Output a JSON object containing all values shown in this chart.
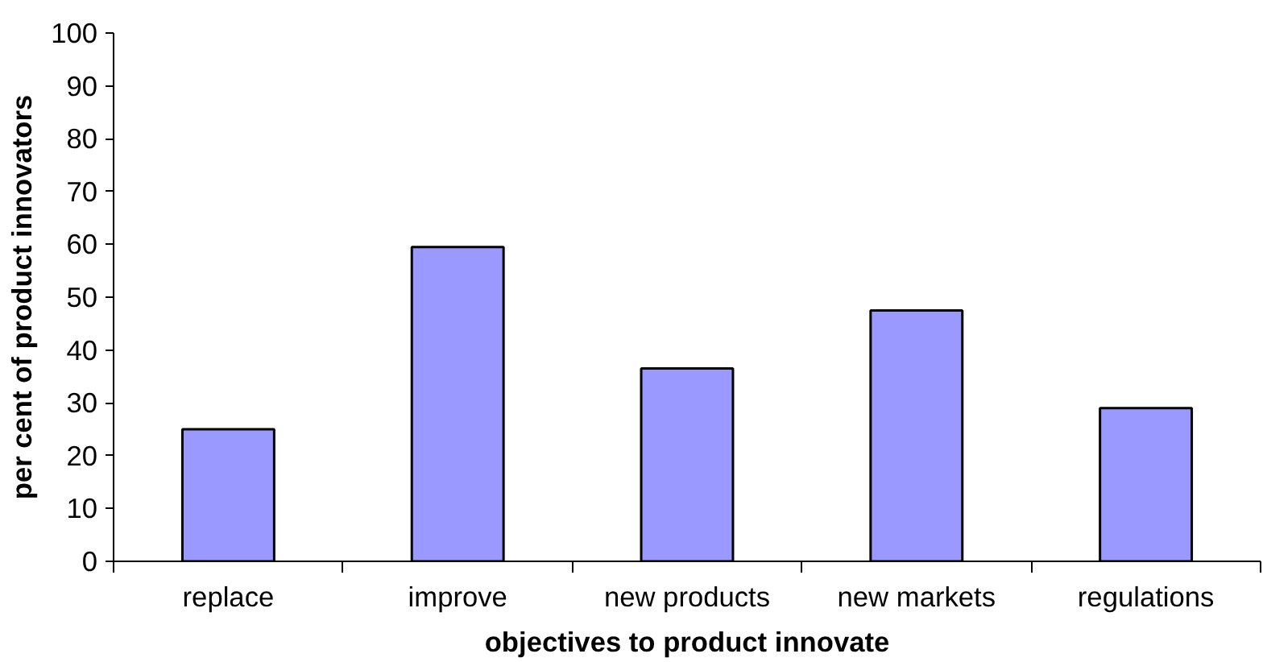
{
  "chart_data": {
    "type": "bar",
    "xlabel": "objectives to product innovate",
    "ylabel": "per cent of product innovators",
    "categories": [
      "replace",
      "improve",
      "new products",
      "new markets",
      "regulations"
    ],
    "values": [
      25,
      59.5,
      36.5,
      47.5,
      29
    ],
    "color": "#9999ff",
    "ylim": [
      0,
      100
    ],
    "yticks": [
      0,
      10,
      20,
      30,
      40,
      50,
      60,
      70,
      80,
      90,
      100
    ],
    "grid": false
  }
}
